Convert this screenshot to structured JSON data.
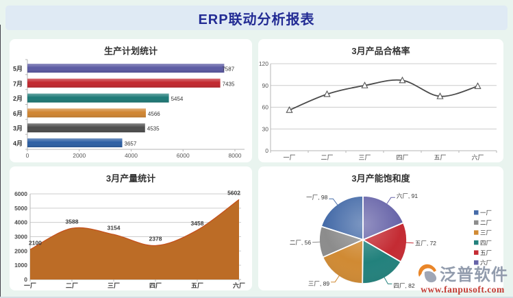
{
  "header": {
    "title": "ERP联动分析报表"
  },
  "watermark": {
    "brand": "泛普软件",
    "url": "www.fanpusoft.com",
    "brand_color": "#8d97a9",
    "url_color": "#c03028",
    "logo_orange": "#e8801e",
    "logo_gray": "#9aa2b2"
  },
  "chart_data": [
    {
      "id": "production-plan",
      "type": "bar",
      "orientation": "horizontal",
      "title": "生产计划统计",
      "categories": [
        "5月",
        "7月",
        "2月",
        "6月",
        "3月",
        "4月"
      ],
      "values": [
        7587,
        7435,
        5454,
        4566,
        4535,
        3657
      ],
      "colors": [
        "#5b5aa3",
        "#c2272e",
        "#1d7a77",
        "#d08531",
        "#4d4d4d",
        "#2d5fa3"
      ],
      "xlim": [
        0,
        8000
      ],
      "xticks": [
        0,
        2000,
        4000,
        6000,
        8000
      ],
      "grid": false,
      "data_labels": true
    },
    {
      "id": "pass-rate",
      "type": "line",
      "title": "3月产品合格率",
      "categories": [
        "一厂",
        "二厂",
        "三厂",
        "四厂",
        "五厂",
        "六厂"
      ],
      "values": [
        56,
        78,
        90,
        97,
        75,
        89
      ],
      "ylim": [
        0,
        120
      ],
      "yticks": [
        0,
        30,
        60,
        90,
        120
      ],
      "line_color": "#4a4a4a",
      "marker": "triangle",
      "grid": true,
      "data_labels": false
    },
    {
      "id": "output-stats",
      "type": "area",
      "title": "3月产量统计",
      "categories": [
        "一厂",
        "二厂",
        "三厂",
        "四厂",
        "五厂",
        "六厂"
      ],
      "values": [
        2100,
        3588,
        3154,
        2378,
        3458,
        5602
      ],
      "ylim": [
        0,
        6000
      ],
      "yticks": [
        0,
        1000,
        2000,
        3000,
        4000,
        5000,
        6000
      ],
      "fill_color": "#bc6c26",
      "edge_color": "#c4511d",
      "grid": true,
      "data_labels": true
    },
    {
      "id": "capacity-saturation",
      "type": "pie",
      "title": "3月产能饱和度",
      "slices": [
        {
          "label": "一厂",
          "value": 98,
          "color": "#456ba8"
        },
        {
          "label": "二厂",
          "value": 56,
          "color": "#8c8c8c"
        },
        {
          "label": "三厂",
          "value": 89,
          "color": "#d08a33"
        },
        {
          "label": "四厂",
          "value": 82,
          "color": "#22817c"
        },
        {
          "label": "五厂",
          "value": 72,
          "color": "#c42b33"
        },
        {
          "label": "六厂",
          "value": 91,
          "color": "#6663a8"
        }
      ],
      "start_angle": 90,
      "direction": "counterclockwise",
      "legend_position": "right"
    }
  ]
}
